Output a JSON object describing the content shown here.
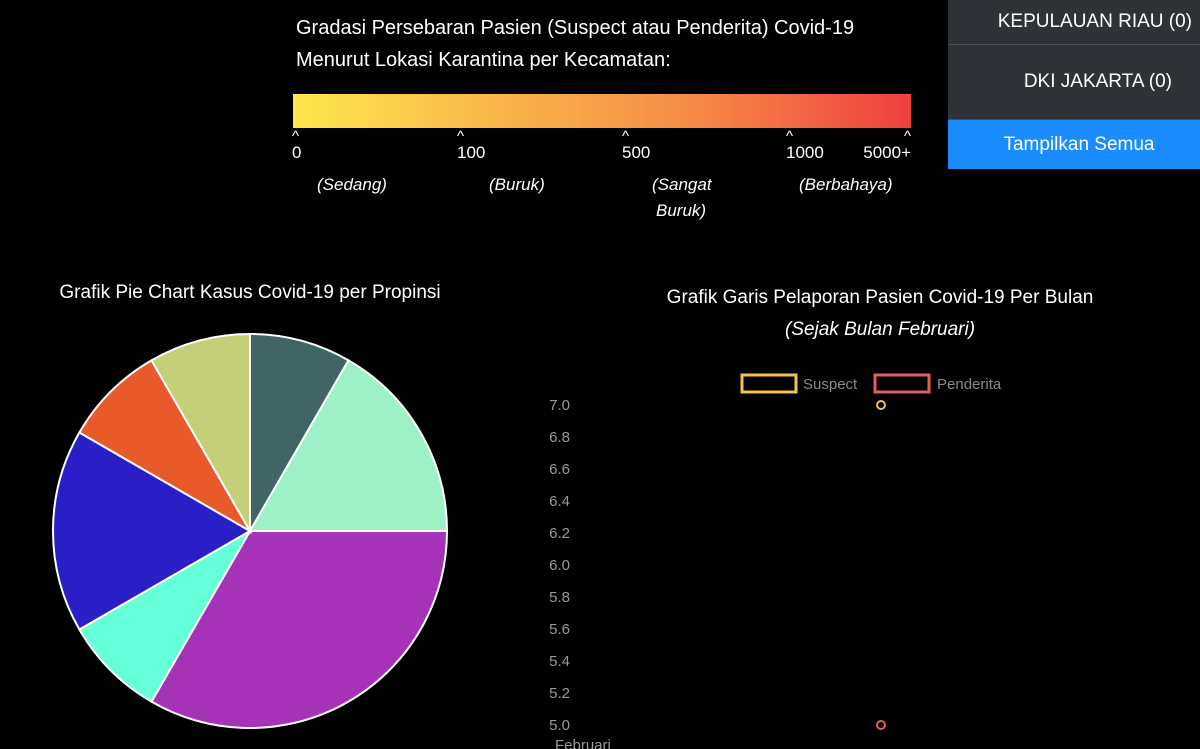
{
  "legend": {
    "title_line1": "Gradasi Persebaran Pasien (Suspect atau Penderita) Covid-19",
    "title_line2": "Menurut Lokasi Karantina per Kecamatan:",
    "ticks": [
      "0",
      "100",
      "500",
      "1000",
      "5000+"
    ],
    "grades": [
      "(Sedang)",
      "(Buruk)",
      "(Sangat",
      "Buruk)",
      "(Berbahaya)"
    ],
    "colors": [
      "#fde74c",
      "#ef4040"
    ]
  },
  "panel": {
    "item1": "KEPULAUAN RIAU (0)",
    "item2": "DKI JAKARTA (0)",
    "button": "Tampilkan Semua"
  },
  "pie": {
    "title": "Grafik Pie Chart Kasus Covid-19 per Propinsi"
  },
  "line": {
    "title": "Grafik Garis Pelaporan Pasien Covid-19 Per Bulan",
    "subtitle": "(Sejak Bulan Februari)"
  },
  "chart_data": [
    {
      "type": "pie",
      "title": "Grafik Pie Chart Kasus Covid-19 per Propinsi",
      "values": [
        1,
        2,
        4,
        1,
        2,
        1,
        1
      ],
      "colors": [
        "#3f6565",
        "#9ef0c7",
        "#a632b8",
        "#64ffd9",
        "#2a1fc6",
        "#e85a2a",
        "#c5cf78"
      ]
    },
    {
      "type": "scatter",
      "title": "Grafik Garis Pelaporan Pasien Covid-19 Per Bulan",
      "subtitle": "(Sejak Bulan Februari)",
      "categories": [
        "Februari"
      ],
      "series": [
        {
          "name": "Suspect",
          "values": [
            7.0
          ],
          "color": "#f2c14e"
        },
        {
          "name": "Penderita",
          "values": [
            5.0
          ],
          "color": "#e05f5f"
        }
      ],
      "ylim": [
        5.0,
        7.0
      ],
      "yticks": [
        "7.0",
        "6.8",
        "6.6",
        "6.4",
        "6.2",
        "6.0",
        "5.8",
        "5.6",
        "5.4",
        "5.2",
        "5.0"
      ]
    }
  ]
}
